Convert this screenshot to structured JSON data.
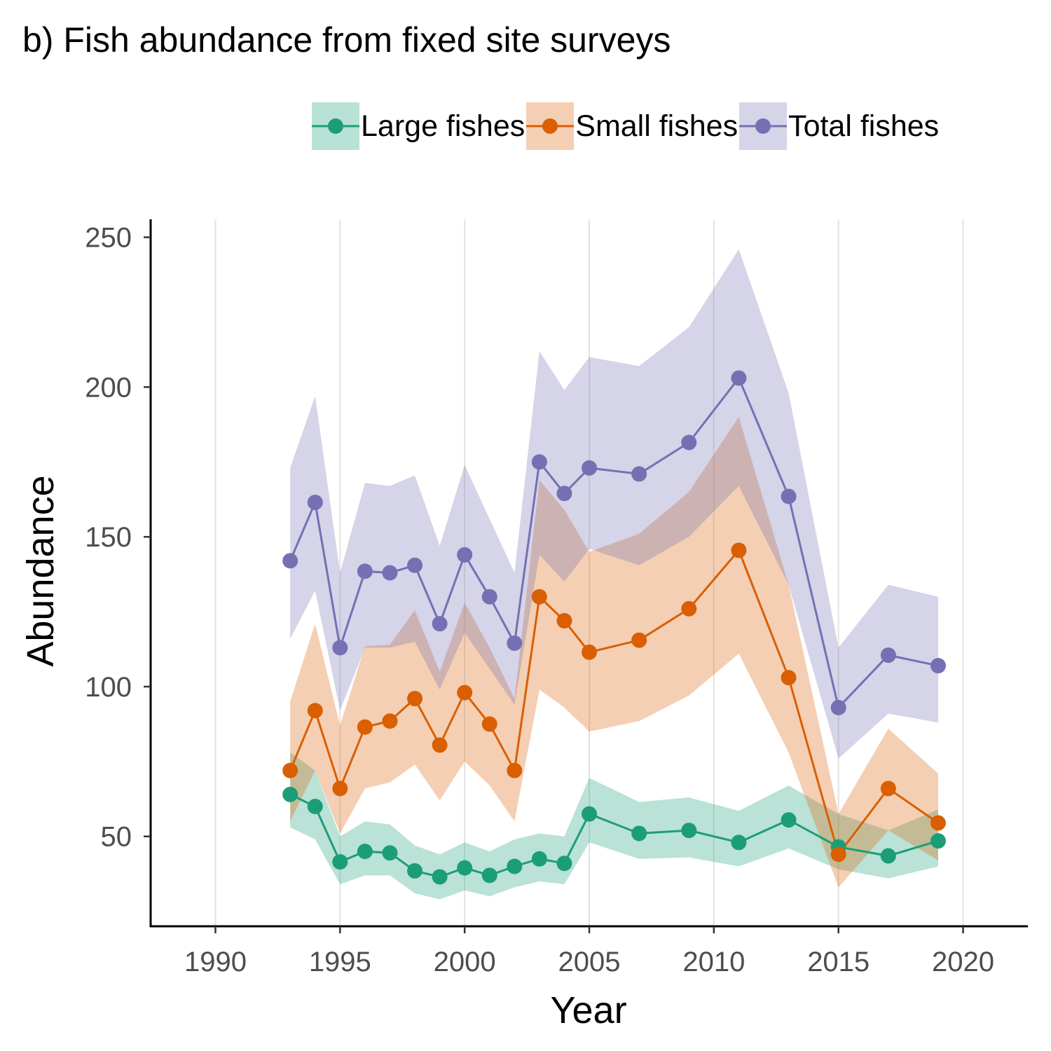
{
  "chart_data": {
    "type": "line",
    "title": "b) Fish abundance from fixed site surveys",
    "xlabel": "Year",
    "ylabel": "Abundance",
    "xlim": [
      1987.4,
      2022.6
    ],
    "ylim": [
      20,
      256
    ],
    "xticks": [
      1990,
      1995,
      2000,
      2005,
      2010,
      2015,
      2020
    ],
    "yticks": [
      50,
      100,
      150,
      200,
      250
    ],
    "grid": "vertical major gridlines",
    "legend_position": "top",
    "series": [
      {
        "name": "Large fishes",
        "color": "#1b9e77",
        "ribbon_color": "#b8e2d5",
        "x": [
          1993,
          1994,
          1995,
          1996,
          1997,
          1998,
          1999,
          2000,
          2001,
          2002,
          2003,
          2004,
          2005,
          2007,
          2009,
          2011,
          2013,
          2015,
          2017,
          2019
        ],
        "values": [
          64,
          60,
          41.5,
          45,
          44.5,
          38.5,
          36.5,
          39.5,
          37,
          40,
          42.5,
          41,
          57.5,
          51,
          52,
          48,
          55.5,
          46.5,
          43.5,
          48.5
        ],
        "lower": [
          53,
          49,
          34,
          37,
          37,
          31,
          29,
          32,
          30,
          33,
          35,
          34,
          48,
          42.5,
          43,
          40,
          46,
          39,
          36,
          40
        ],
        "upper": [
          78,
          72,
          50,
          55,
          54,
          47,
          44,
          48,
          45,
          49,
          51,
          50,
          69.5,
          61.5,
          63,
          58.5,
          67,
          57.5,
          52,
          59
        ]
      },
      {
        "name": "Small fishes",
        "color": "#d95f02",
        "ribbon_color": "#f5cfb3",
        "x": [
          1993,
          1994,
          1995,
          1996,
          1997,
          1998,
          1999,
          2000,
          2001,
          2002,
          2003,
          2004,
          2005,
          2007,
          2009,
          2011,
          2013,
          2015,
          2017,
          2019
        ],
        "values": [
          72,
          92,
          66,
          86.5,
          88.5,
          96,
          80.5,
          98,
          87.5,
          72,
          130,
          122,
          111.5,
          115.5,
          126,
          145.5,
          103,
          44,
          66,
          54.5
        ],
        "lower": [
          55,
          72,
          51,
          66,
          68,
          74,
          62,
          75,
          67,
          55,
          99,
          93,
          85,
          88.5,
          97,
          111,
          78,
          33,
          52,
          42
        ],
        "upper": [
          95,
          121,
          87,
          113.5,
          114,
          125.5,
          105,
          128,
          113,
          96,
          169,
          159,
          145,
          151,
          165,
          190,
          134,
          57.5,
          86,
          71
        ]
      },
      {
        "name": "Total fishes",
        "color": "#7570b3",
        "ribbon_color": "#d6d4e8",
        "x": [
          1993,
          1994,
          1995,
          1996,
          1997,
          1998,
          1999,
          2000,
          2001,
          2002,
          2003,
          2004,
          2005,
          2007,
          2009,
          2011,
          2013,
          2015,
          2017,
          2019
        ],
        "values": [
          142,
          161.5,
          113,
          138.5,
          138,
          140.5,
          121,
          144,
          130,
          114.5,
          175,
          164.5,
          173,
          171,
          181.5,
          203,
          163.5,
          93,
          110.5,
          107
        ],
        "lower": [
          116,
          132,
          92,
          113,
          113,
          115,
          99,
          118,
          106,
          94,
          144,
          135,
          146,
          140.5,
          150,
          167,
          134,
          76,
          91,
          88
        ],
        "upper": [
          173,
          197,
          138,
          168,
          167,
          170.5,
          147,
          174,
          156,
          138,
          212,
          199,
          210,
          207,
          220,
          246,
          198,
          113,
          134,
          130
        ]
      }
    ]
  }
}
